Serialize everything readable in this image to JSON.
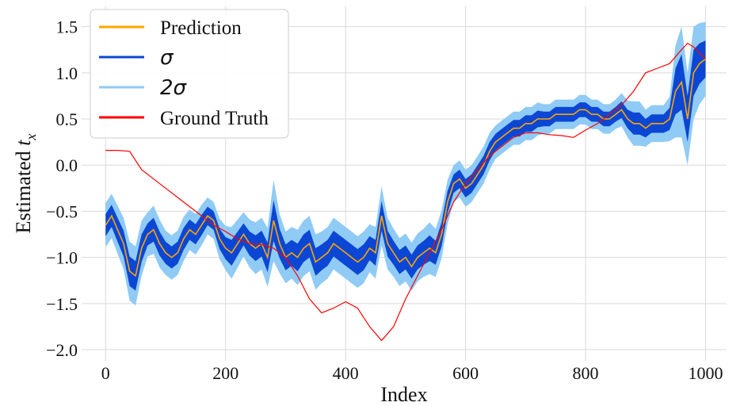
{
  "chart_data": {
    "type": "line",
    "title": "",
    "xlabel": "Index",
    "ylabel": "Estimated t_x",
    "ylabel_parts": {
      "prefix": "Estimated ",
      "symbol": "t",
      "subscript": "x"
    },
    "xlim": [
      -40,
      1035
    ],
    "ylim": [
      -2.12,
      1.72
    ],
    "x_ticks": [
      0,
      200,
      400,
      600,
      800,
      1000
    ],
    "x_tick_labels": [
      "0",
      "200",
      "400",
      "600",
      "800",
      "1000"
    ],
    "y_ticks": [
      1.5,
      1.0,
      0.5,
      0.0,
      -0.5,
      -1.0,
      -1.5,
      -2.0
    ],
    "y_tick_labels": [
      "1.5",
      "1.0",
      "0.5",
      "0.0",
      "−0.5",
      "−1.0",
      "−1.5",
      "−2.0"
    ],
    "grid": true,
    "legend_position": "top-left",
    "legend": [
      {
        "label": "Prediction",
        "color": "#FFA500",
        "style": "text"
      },
      {
        "label": "σ",
        "color": "#0B47D4",
        "style": "math"
      },
      {
        "label": "2σ",
        "color": "#8FCBF5",
        "style": "math"
      },
      {
        "label": "Ground Truth",
        "color": "#FF0000",
        "style": "text"
      }
    ],
    "series": [
      {
        "name": "Prediction",
        "color": "#FFA500",
        "x": [
          0,
          10,
          20,
          30,
          40,
          50,
          60,
          70,
          80,
          90,
          100,
          110,
          120,
          130,
          140,
          150,
          160,
          170,
          180,
          190,
          200,
          210,
          220,
          230,
          240,
          250,
          260,
          270,
          280,
          290,
          300,
          310,
          320,
          330,
          340,
          350,
          360,
          370,
          380,
          390,
          400,
          410,
          420,
          430,
          440,
          450,
          460,
          470,
          480,
          490,
          500,
          510,
          520,
          530,
          540,
          550,
          560,
          570,
          580,
          590,
          600,
          610,
          620,
          630,
          640,
          650,
          660,
          670,
          680,
          690,
          700,
          710,
          720,
          730,
          740,
          750,
          760,
          770,
          780,
          790,
          800,
          810,
          820,
          830,
          840,
          850,
          860,
          870,
          880,
          890,
          900,
          910,
          920,
          930,
          940,
          950,
          960,
          970,
          980,
          990,
          1000
        ],
        "y": [
          -0.65,
          -0.55,
          -0.7,
          -0.85,
          -1.15,
          -1.2,
          -0.9,
          -0.75,
          -0.7,
          -0.85,
          -0.95,
          -1.0,
          -0.95,
          -0.8,
          -0.7,
          -0.75,
          -0.65,
          -0.55,
          -0.6,
          -0.8,
          -0.9,
          -0.95,
          -0.85,
          -0.75,
          -0.85,
          -0.9,
          -0.85,
          -1.0,
          -0.6,
          -0.85,
          -1.0,
          -0.95,
          -1.0,
          -0.9,
          -0.85,
          -1.05,
          -1.0,
          -0.95,
          -0.85,
          -0.9,
          -0.95,
          -1.0,
          -1.05,
          -1.0,
          -0.9,
          -0.95,
          -0.55,
          -0.85,
          -0.95,
          -1.05,
          -1.0,
          -1.1,
          -1.0,
          -0.95,
          -0.9,
          -0.95,
          -0.75,
          -0.4,
          -0.2,
          -0.15,
          -0.25,
          -0.2,
          -0.1,
          0.0,
          0.15,
          0.25,
          0.3,
          0.35,
          0.4,
          0.4,
          0.45,
          0.45,
          0.5,
          0.5,
          0.5,
          0.55,
          0.55,
          0.55,
          0.55,
          0.6,
          0.6,
          0.55,
          0.55,
          0.5,
          0.5,
          0.55,
          0.6,
          0.5,
          0.45,
          0.45,
          0.4,
          0.45,
          0.45,
          0.45,
          0.5,
          0.8,
          0.9,
          0.5,
          1.0,
          1.1,
          1.15
        ],
        "sigma": [
          0.12,
          0.12,
          0.13,
          0.14,
          0.16,
          0.16,
          0.15,
          0.12,
          0.13,
          0.13,
          0.12,
          0.12,
          0.12,
          0.12,
          0.11,
          0.11,
          0.11,
          0.1,
          0.1,
          0.11,
          0.12,
          0.14,
          0.13,
          0.12,
          0.13,
          0.14,
          0.14,
          0.16,
          0.22,
          0.16,
          0.14,
          0.14,
          0.15,
          0.15,
          0.15,
          0.15,
          0.14,
          0.14,
          0.14,
          0.14,
          0.14,
          0.14,
          0.14,
          0.14,
          0.13,
          0.14,
          0.16,
          0.14,
          0.13,
          0.13,
          0.13,
          0.13,
          0.13,
          0.13,
          0.14,
          0.13,
          0.13,
          0.12,
          0.1,
          0.1,
          0.1,
          0.1,
          0.1,
          0.1,
          0.1,
          0.09,
          0.09,
          0.09,
          0.09,
          0.09,
          0.09,
          0.09,
          0.09,
          0.08,
          0.08,
          0.08,
          0.08,
          0.08,
          0.08,
          0.08,
          0.08,
          0.08,
          0.08,
          0.08,
          0.08,
          0.08,
          0.09,
          0.1,
          0.12,
          0.12,
          0.1,
          0.1,
          0.1,
          0.1,
          0.12,
          0.25,
          0.3,
          0.25,
          0.25,
          0.22,
          0.2
        ]
      },
      {
        "name": "Ground Truth",
        "color": "#FF0000",
        "x": [
          0,
          20,
          40,
          60,
          80,
          100,
          120,
          140,
          160,
          180,
          200,
          220,
          240,
          260,
          280,
          300,
          320,
          340,
          360,
          380,
          400,
          420,
          440,
          460,
          480,
          500,
          520,
          540,
          560,
          580,
          600,
          620,
          640,
          660,
          680,
          700,
          720,
          740,
          760,
          780,
          800,
          820,
          840,
          860,
          880,
          900,
          920,
          940,
          960,
          970,
          980,
          1000
        ],
        "y": [
          0.16,
          0.16,
          0.15,
          -0.05,
          -0.15,
          -0.25,
          -0.35,
          -0.45,
          -0.55,
          -0.65,
          -0.72,
          -0.8,
          -0.85,
          -0.86,
          -0.9,
          -1.0,
          -1.2,
          -1.45,
          -1.6,
          -1.55,
          -1.48,
          -1.55,
          -1.75,
          -1.9,
          -1.75,
          -1.45,
          -1.2,
          -0.95,
          -0.7,
          -0.4,
          -0.2,
          -0.05,
          0.1,
          0.2,
          0.3,
          0.35,
          0.35,
          0.33,
          0.32,
          0.3,
          0.38,
          0.45,
          0.55,
          0.65,
          0.8,
          1.0,
          1.05,
          1.1,
          1.25,
          1.32,
          1.28,
          1.15
        ]
      }
    ]
  }
}
